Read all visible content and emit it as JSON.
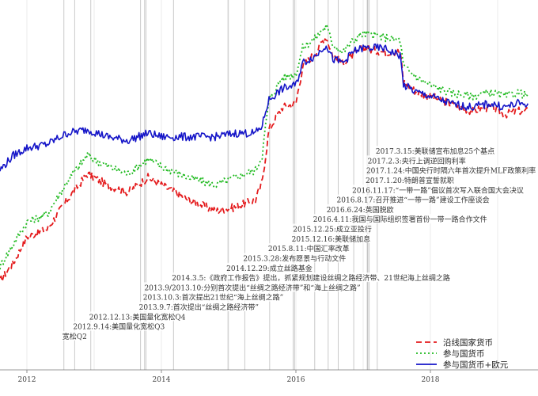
{
  "chart_data": {
    "type": "line",
    "title": "",
    "xlabel": "",
    "ylabel": "",
    "x_range": [
      2011.6,
      2019.6
    ],
    "y_range": [
      0,
      100
    ],
    "x_ticks": [
      {
        "value": 2012,
        "label": "2012"
      },
      {
        "value": 2014,
        "label": "2014"
      },
      {
        "value": 2016,
        "label": "2016"
      },
      {
        "value": 2018,
        "label": "2018"
      }
    ],
    "legend": {
      "position": "bottom-right",
      "entries": [
        {
          "label": "沿线国家货币",
          "color": "#e41a1c",
          "dash": "dashed"
        },
        {
          "label": "参与国货币",
          "color": "#22bb22",
          "dash": "dotted"
        },
        {
          "label": "参与国货币+欧元",
          "color": "#1515c8",
          "dash": "solid"
        }
      ]
    },
    "events": [
      {
        "date": 2012.55,
        "label": "宽松Q2"
      },
      {
        "date": 2012.71,
        "label": "2012.9.14:美国量化宽松Q3"
      },
      {
        "date": 2012.95,
        "label": "2012.12.13:美国量化宽松Q4"
      },
      {
        "date": 2013.69,
        "label": "2013.9.7:首次提出“丝绸之路经济带”"
      },
      {
        "date": 2013.75,
        "label": "2013.10.3:首次提出21世纪“海上丝绸之路”"
      },
      {
        "date": 2013.77,
        "label": "2013.9/2013.10:分别首次提出“丝绸之路经济带”和“海上丝绸之路”"
      },
      {
        "date": 2014.18,
        "label": "2014.3.5:《政府工作报告》提出，抓紧规划建设丝绸之路经济带、21世纪海上丝绸之路"
      },
      {
        "date": 2014.99,
        "label": "2014.12.29:成立丝路基金"
      },
      {
        "date": 2015.24,
        "label": "2015.3.28:发布愿景与行动文件"
      },
      {
        "date": 2015.61,
        "label": "2015.8.11:中国汇率改革"
      },
      {
        "date": 2015.96,
        "label": "2015.12.16:美联储加息"
      },
      {
        "date": 2015.98,
        "label": "2015.12.25:成立亚投行"
      },
      {
        "date": 2016.28,
        "label": "2016.4.11:我国与国际组织签署首份一带一路合作文件"
      },
      {
        "date": 2016.48,
        "label": "2016.6.24:英国脱欧"
      },
      {
        "date": 2016.63,
        "label": "2016.8.17:召开推进“一带一路”建设工作座谈会"
      },
      {
        "date": 2016.86,
        "label": "2016.11.17:“一带一路”倡议首次写入联合国大会决议"
      },
      {
        "date": 2017.06,
        "label": "2017.1.20:特朗普宣誓就职"
      },
      {
        "date": 2017.07,
        "label": "2017.1.24:中国央行时隔六年首次提升MLF政策利率"
      },
      {
        "date": 2017.09,
        "label": "2017.2.3:央行上调逆回购利率"
      },
      {
        "date": 2017.21,
        "label": "2017.3.15:美联储宣布加息25个基点"
      }
    ],
    "series": [
      {
        "name": "沿线国家货币",
        "color": "#e41a1c",
        "dash": "dashed",
        "points": [
          [
            2011.6,
            24
          ],
          [
            2011.8,
            29
          ],
          [
            2012.0,
            36
          ],
          [
            2012.3,
            38
          ],
          [
            2012.6,
            46
          ],
          [
            2012.9,
            53
          ],
          [
            2013.2,
            50
          ],
          [
            2013.5,
            48
          ],
          [
            2013.8,
            52
          ],
          [
            2014.0,
            50
          ],
          [
            2014.4,
            46
          ],
          [
            2014.8,
            43
          ],
          [
            2015.1,
            44
          ],
          [
            2015.4,
            46
          ],
          [
            2015.5,
            51
          ],
          [
            2015.55,
            58
          ],
          [
            2015.6,
            65
          ],
          [
            2015.8,
            71
          ],
          [
            2016.0,
            72
          ],
          [
            2016.1,
            82
          ],
          [
            2016.3,
            86
          ],
          [
            2016.4,
            89
          ],
          [
            2016.45,
            90
          ],
          [
            2016.55,
            85
          ],
          [
            2016.7,
            83
          ],
          [
            2016.85,
            85
          ],
          [
            2017.0,
            87
          ],
          [
            2017.3,
            86
          ],
          [
            2017.55,
            86
          ],
          [
            2017.6,
            78
          ],
          [
            2017.8,
            75
          ],
          [
            2018.0,
            74
          ],
          [
            2018.3,
            72
          ],
          [
            2018.6,
            70
          ],
          [
            2018.9,
            71
          ],
          [
            2019.1,
            69
          ],
          [
            2019.3,
            70
          ],
          [
            2019.45,
            70
          ]
        ]
      },
      {
        "name": "参与国货币",
        "color": "#22bb22",
        "dash": "dotted",
        "points": [
          [
            2011.6,
            28
          ],
          [
            2011.8,
            34
          ],
          [
            2012.0,
            40
          ],
          [
            2012.3,
            42
          ],
          [
            2012.6,
            51
          ],
          [
            2012.9,
            58
          ],
          [
            2013.2,
            55
          ],
          [
            2013.5,
            53
          ],
          [
            2013.8,
            57
          ],
          [
            2014.0,
            55
          ],
          [
            2014.4,
            52
          ],
          [
            2014.8,
            50
          ],
          [
            2015.1,
            52
          ],
          [
            2015.4,
            54
          ],
          [
            2015.5,
            58
          ],
          [
            2015.55,
            66
          ],
          [
            2015.6,
            73
          ],
          [
            2015.8,
            79
          ],
          [
            2016.0,
            80
          ],
          [
            2016.1,
            87
          ],
          [
            2016.3,
            90
          ],
          [
            2016.4,
            92
          ],
          [
            2016.45,
            93
          ],
          [
            2016.55,
            88
          ],
          [
            2016.7,
            86
          ],
          [
            2016.85,
            89
          ],
          [
            2017.0,
            91
          ],
          [
            2017.3,
            90
          ],
          [
            2017.55,
            89
          ],
          [
            2017.6,
            82
          ],
          [
            2017.8,
            79
          ],
          [
            2018.0,
            77
          ],
          [
            2018.3,
            75
          ],
          [
            2018.6,
            74
          ],
          [
            2018.9,
            75
          ],
          [
            2019.1,
            74
          ],
          [
            2019.3,
            75
          ],
          [
            2019.45,
            74
          ]
        ]
      },
      {
        "name": "参与国货币+欧元",
        "color": "#1515c8",
        "dash": "solid",
        "points": [
          [
            2011.6,
            54
          ],
          [
            2011.8,
            58
          ],
          [
            2012.0,
            60
          ],
          [
            2012.3,
            61
          ],
          [
            2012.6,
            64
          ],
          [
            2012.9,
            65
          ],
          [
            2013.2,
            63
          ],
          [
            2013.5,
            62
          ],
          [
            2013.8,
            64
          ],
          [
            2014.0,
            63
          ],
          [
            2014.4,
            63
          ],
          [
            2014.8,
            63
          ],
          [
            2015.1,
            64
          ],
          [
            2015.4,
            64
          ],
          [
            2015.5,
            66
          ],
          [
            2015.55,
            70
          ],
          [
            2015.6,
            73
          ],
          [
            2015.8,
            76
          ],
          [
            2016.0,
            77
          ],
          [
            2016.1,
            83
          ],
          [
            2016.3,
            85
          ],
          [
            2016.4,
            87
          ],
          [
            2016.45,
            88
          ],
          [
            2016.55,
            84
          ],
          [
            2016.7,
            83
          ],
          [
            2016.85,
            86
          ],
          [
            2017.0,
            87
          ],
          [
            2017.3,
            87
          ],
          [
            2017.55,
            85
          ],
          [
            2017.6,
            77
          ],
          [
            2017.8,
            75
          ],
          [
            2018.0,
            74
          ],
          [
            2018.3,
            72
          ],
          [
            2018.6,
            71
          ],
          [
            2018.9,
            72
          ],
          [
            2019.1,
            71
          ],
          [
            2019.3,
            72
          ],
          [
            2019.45,
            72
          ]
        ]
      }
    ]
  }
}
